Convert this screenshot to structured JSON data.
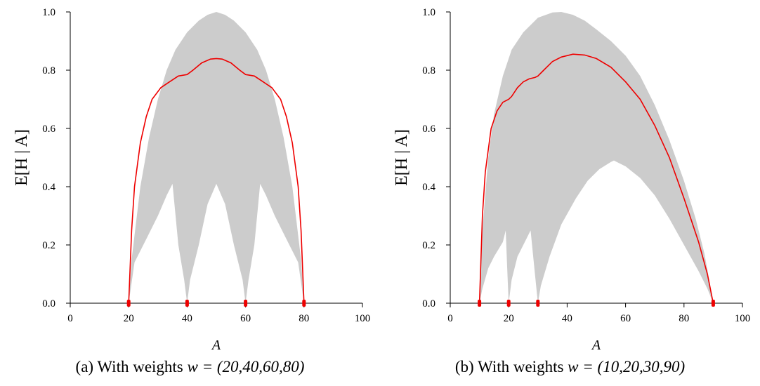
{
  "chart_data": [
    {
      "type": "area",
      "panel": "a",
      "caption_prefix": "(a) With weights ",
      "caption_math": "w = (20,40,60,80)",
      "xlabel": "A",
      "ylabel": "E[H | A]",
      "xlim": [
        0,
        100
      ],
      "ylim": [
        0,
        1
      ],
      "xticks": [
        "0",
        "20",
        "40",
        "60",
        "80",
        "100"
      ],
      "yticks": [
        "0.0",
        "0.2",
        "0.4",
        "0.6",
        "0.8",
        "1.0"
      ],
      "grid": false,
      "legend": "none",
      "colors": {
        "band": "#cccccc",
        "line": "#ee0000",
        "markers": "#ee0000"
      },
      "weights": [
        20,
        40,
        60,
        80
      ],
      "band_upper": [
        [
          20,
          0
        ],
        [
          21,
          0.15
        ],
        [
          24,
          0.4
        ],
        [
          27,
          0.57
        ],
        [
          30,
          0.7
        ],
        [
          33,
          0.8
        ],
        [
          36,
          0.87
        ],
        [
          40,
          0.93
        ],
        [
          44,
          0.97
        ],
        [
          47,
          0.99
        ],
        [
          50,
          1.0
        ],
        [
          53,
          0.99
        ],
        [
          56,
          0.97
        ],
        [
          60,
          0.93
        ],
        [
          64,
          0.87
        ],
        [
          67,
          0.8
        ],
        [
          70,
          0.7
        ],
        [
          73,
          0.57
        ],
        [
          76,
          0.4
        ],
        [
          79,
          0.15
        ],
        [
          80,
          0
        ]
      ],
      "band_lower": [
        [
          20,
          0
        ],
        [
          22,
          0.14
        ],
        [
          26,
          0.22
        ],
        [
          30,
          0.3
        ],
        [
          33,
          0.37
        ],
        [
          35,
          0.41
        ],
        [
          37,
          0.2
        ],
        [
          39,
          0.08
        ],
        [
          40,
          0
        ],
        [
          41,
          0.08
        ],
        [
          44,
          0.2
        ],
        [
          47,
          0.34
        ],
        [
          50,
          0.41
        ],
        [
          53,
          0.34
        ],
        [
          56,
          0.2
        ],
        [
          59,
          0.08
        ],
        [
          60,
          0
        ],
        [
          61,
          0.08
        ],
        [
          63,
          0.2
        ],
        [
          65,
          0.41
        ],
        [
          67,
          0.37
        ],
        [
          70,
          0.3
        ],
        [
          74,
          0.22
        ],
        [
          78,
          0.14
        ],
        [
          80,
          0
        ]
      ],
      "expected_curve": [
        [
          20,
          0
        ],
        [
          21,
          0.25
        ],
        [
          22,
          0.4
        ],
        [
          24,
          0.55
        ],
        [
          26,
          0.64
        ],
        [
          28,
          0.7
        ],
        [
          31,
          0.74
        ],
        [
          34,
          0.76
        ],
        [
          37,
          0.78
        ],
        [
          40,
          0.785
        ],
        [
          42,
          0.8
        ],
        [
          45,
          0.825
        ],
        [
          48,
          0.838
        ],
        [
          50,
          0.84
        ],
        [
          52,
          0.838
        ],
        [
          55,
          0.825
        ],
        [
          58,
          0.8
        ],
        [
          60,
          0.785
        ],
        [
          63,
          0.78
        ],
        [
          66,
          0.76
        ],
        [
          69,
          0.74
        ],
        [
          72,
          0.7
        ],
        [
          74,
          0.64
        ],
        [
          76,
          0.55
        ],
        [
          78,
          0.4
        ],
        [
          79,
          0.25
        ],
        [
          80,
          0
        ]
      ]
    },
    {
      "type": "area",
      "panel": "b",
      "caption_prefix": "(b) With weights ",
      "caption_math": "w = (10,20,30,90)",
      "xlabel": "A",
      "ylabel": "E[H | A]",
      "xlim": [
        0,
        100
      ],
      "ylim": [
        0,
        1
      ],
      "xticks": [
        "0",
        "20",
        "40",
        "60",
        "80",
        "100"
      ],
      "yticks": [
        "0.0",
        "0.2",
        "0.4",
        "0.6",
        "0.8",
        "1.0"
      ],
      "grid": false,
      "legend": "none",
      "colors": {
        "band": "#cccccc",
        "line": "#ee0000",
        "markers": "#ee0000"
      },
      "weights": [
        10,
        20,
        30,
        90
      ],
      "band_upper": [
        [
          10,
          0
        ],
        [
          11,
          0.25
        ],
        [
          13,
          0.5
        ],
        [
          15,
          0.65
        ],
        [
          18,
          0.78
        ],
        [
          21,
          0.87
        ],
        [
          25,
          0.93
        ],
        [
          30,
          0.98
        ],
        [
          35,
          0.998
        ],
        [
          38,
          1.0
        ],
        [
          42,
          0.99
        ],
        [
          46,
          0.97
        ],
        [
          50,
          0.94
        ],
        [
          55,
          0.9
        ],
        [
          60,
          0.85
        ],
        [
          65,
          0.78
        ],
        [
          70,
          0.68
        ],
        [
          75,
          0.56
        ],
        [
          80,
          0.42
        ],
        [
          84,
          0.29
        ],
        [
          87,
          0.17
        ],
        [
          89,
          0.06
        ],
        [
          90,
          0
        ]
      ],
      "band_lower": [
        [
          10,
          0
        ],
        [
          11,
          0.05
        ],
        [
          13,
          0.12
        ],
        [
          15,
          0.16
        ],
        [
          18,
          0.21
        ],
        [
          19,
          0.25
        ],
        [
          19.5,
          0.12
        ],
        [
          20,
          0
        ],
        [
          21,
          0.08
        ],
        [
          23,
          0.16
        ],
        [
          26,
          0.22
        ],
        [
          27.5,
          0.25
        ],
        [
          29,
          0.1
        ],
        [
          30,
          0
        ],
        [
          31,
          0.06
        ],
        [
          34,
          0.16
        ],
        [
          38,
          0.27
        ],
        [
          43,
          0.36
        ],
        [
          47,
          0.42
        ],
        [
          51,
          0.46
        ],
        [
          55,
          0.485
        ],
        [
          56,
          0.49
        ],
        [
          60,
          0.47
        ],
        [
          65,
          0.43
        ],
        [
          70,
          0.37
        ],
        [
          75,
          0.29
        ],
        [
          80,
          0.2
        ],
        [
          85,
          0.11
        ],
        [
          88,
          0.05
        ],
        [
          90,
          0
        ]
      ],
      "expected_curve": [
        [
          10,
          0
        ],
        [
          11,
          0.3
        ],
        [
          12,
          0.45
        ],
        [
          14,
          0.6
        ],
        [
          16,
          0.66
        ],
        [
          18,
          0.69
        ],
        [
          20,
          0.7
        ],
        [
          21,
          0.71
        ],
        [
          23,
          0.74
        ],
        [
          25,
          0.76
        ],
        [
          27,
          0.77
        ],
        [
          29,
          0.775
        ],
        [
          30,
          0.78
        ],
        [
          32,
          0.8
        ],
        [
          35,
          0.83
        ],
        [
          38,
          0.845
        ],
        [
          42,
          0.855
        ],
        [
          46,
          0.852
        ],
        [
          50,
          0.84
        ],
        [
          55,
          0.81
        ],
        [
          60,
          0.76
        ],
        [
          65,
          0.7
        ],
        [
          70,
          0.61
        ],
        [
          75,
          0.5
        ],
        [
          80,
          0.36
        ],
        [
          85,
          0.21
        ],
        [
          88,
          0.1
        ],
        [
          90,
          0
        ]
      ]
    }
  ]
}
